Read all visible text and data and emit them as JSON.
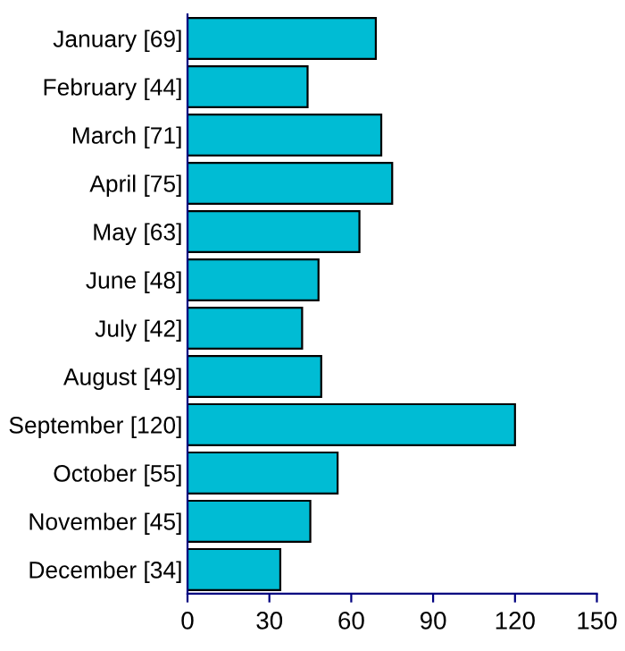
{
  "chart_data": {
    "type": "bar",
    "orientation": "horizontal",
    "categories": [
      "January [69]",
      "February [44]",
      "March [71]",
      "April [75]",
      "May [63]",
      "June [48]",
      "July [42]",
      "August [49]",
      "September [120]",
      "October [55]",
      "November [45]",
      "December [34]"
    ],
    "values": [
      69,
      44,
      71,
      75,
      63,
      48,
      42,
      49,
      120,
      55,
      45,
      34
    ],
    "color": "#00bcd4",
    "xlim": [
      0,
      150
    ],
    "xticks": [
      0,
      30,
      60,
      90,
      120,
      150
    ],
    "grid": false,
    "legend": false
  }
}
